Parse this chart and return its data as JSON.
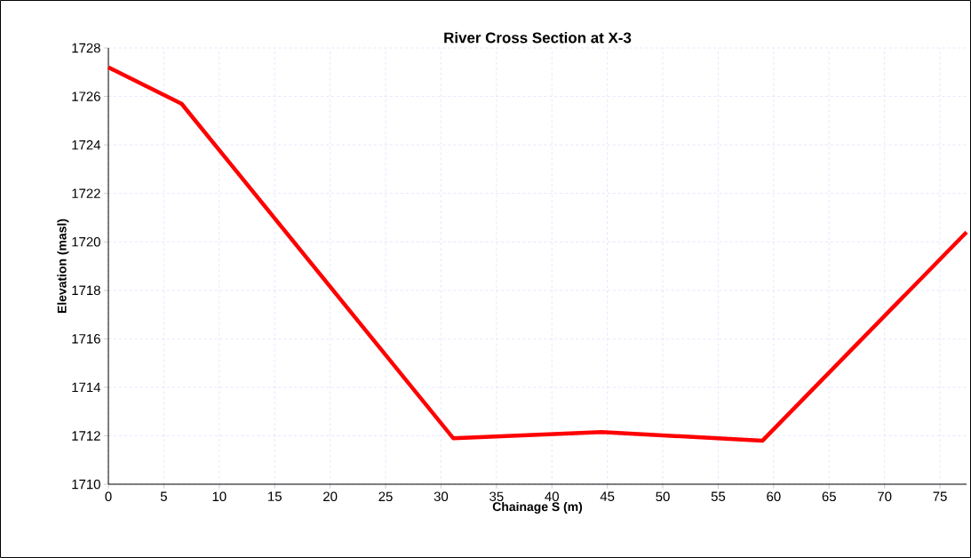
{
  "chart_data": {
    "type": "line",
    "title": "River Cross Section at X-3",
    "xlabel": "Chainage S (m)",
    "ylabel": "Elevation (masl)",
    "x": [
      0,
      6.6,
      31.1,
      44.5,
      59.0,
      77.4
    ],
    "series": [
      {
        "color": "#ff0000",
        "values": [
          1727.2,
          1725.7,
          1711.9,
          1712.15,
          1711.8,
          1720.4
        ]
      }
    ],
    "xlim": [
      0,
      77.4
    ],
    "ylim": [
      1710,
      1728
    ],
    "xticks": [
      0,
      5,
      10,
      15,
      20,
      25,
      30,
      35,
      40,
      45,
      50,
      55,
      60,
      65,
      70,
      75
    ],
    "yticks": [
      1710,
      1712,
      1714,
      1716,
      1718,
      1720,
      1722,
      1724,
      1726,
      1728
    ],
    "grid": true,
    "marker": "none",
    "line_style": "solid"
  }
}
